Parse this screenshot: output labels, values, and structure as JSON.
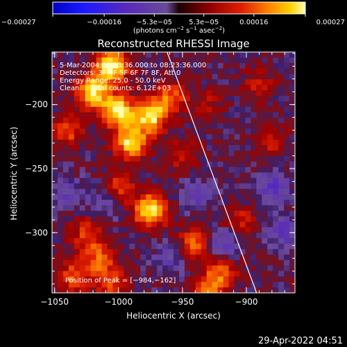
{
  "chart_data": {
    "type": "heatmap",
    "title": "Reconstructed RHESSI Image",
    "xlabel": "Heliocentric X (arcsec)",
    "ylabel": "Heliocentric Y (arcsec)",
    "xlim": [
      -1052,
      -862
    ],
    "ylim": [
      -347,
      -159
    ],
    "x_ticks": [
      {
        "value": -1050,
        "label": "−1050"
      },
      {
        "value": -1000,
        "label": "−1000"
      },
      {
        "value": -950,
        "label": "−950"
      },
      {
        "value": -900,
        "label": "−900"
      }
    ],
    "y_ticks": [
      {
        "value": -200,
        "label": "−200"
      },
      {
        "value": -250,
        "label": "−250"
      },
      {
        "value": -300,
        "label": "−300"
      }
    ],
    "colorbar": {
      "range": [
        -0.00027,
        0.00027
      ],
      "label_main": "(photons cm",
      "label_exp1": "−2",
      "label_mid": " s",
      "label_exp2": "−1",
      "label_end": " asec",
      "label_exp3": "−2",
      "label_close": ")",
      "ticks": [
        {
          "value": -0.00027,
          "label": "−0.00027"
        },
        {
          "value": -0.00016,
          "label": "−0.00016"
        },
        {
          "value": -5.3e-05,
          "label": "−5.3e−05"
        },
        {
          "value": 5.3e-05,
          "label": "5.3e−05"
        },
        {
          "value": 0.00016,
          "label": "0.00016"
        },
        {
          "value": 0.00027,
          "label": "0.00027"
        }
      ]
    },
    "annotations": [
      "5-Mar-2004 08:23:36.000 to 08:23:36.000",
      "Detectors: 3F 4F 5F 6F 7F 8F, Att 0",
      "Energy Range: 25.0 - 50.0 keV",
      "Clean     Total counts: 6.12E+03"
    ],
    "peak_label": "Position of Peak = [−984,−162]",
    "limb_line": {
      "x": [
        -962,
        -892
      ],
      "y": [
        -159,
        -347
      ]
    },
    "sources": [
      {
        "x": -1005,
        "y": -170,
        "intensity": 0.00026
      },
      {
        "x": -1020,
        "y": -190,
        "intensity": 0.00024
      },
      {
        "x": -1000,
        "y": -205,
        "intensity": 0.00025
      },
      {
        "x": -975,
        "y": -210,
        "intensity": 0.00022
      },
      {
        "x": -990,
        "y": -230,
        "intensity": 0.00024
      },
      {
        "x": -960,
        "y": -195,
        "intensity": 0.00016
      },
      {
        "x": -1040,
        "y": -220,
        "intensity": 0.00014
      },
      {
        "x": -975,
        "y": -283,
        "intensity": 0.00026
      },
      {
        "x": -1000,
        "y": -265,
        "intensity": 0.00013
      },
      {
        "x": -1025,
        "y": -300,
        "intensity": 0.00012
      },
      {
        "x": -1015,
        "y": -320,
        "intensity": 0.00014
      },
      {
        "x": -1035,
        "y": -335,
        "intensity": 0.00015
      },
      {
        "x": -1005,
        "y": -340,
        "intensity": 0.00013
      },
      {
        "x": -940,
        "y": -308,
        "intensity": 0.00016
      },
      {
        "x": -920,
        "y": -330,
        "intensity": 0.00015
      },
      {
        "x": -930,
        "y": -345,
        "intensity": 0.00013
      },
      {
        "x": -905,
        "y": -290,
        "intensity": 9e-05
      },
      {
        "x": -950,
        "y": -240,
        "intensity": 0.0001
      },
      {
        "x": -880,
        "y": -230,
        "intensity": 8e-05
      },
      {
        "x": -890,
        "y": -185,
        "intensity": 9e-05
      },
      {
        "x": -930,
        "y": -200,
        "intensity": 7e-05
      }
    ],
    "negative_regions": [
      {
        "x": -920,
        "y": -310,
        "intensity": -0.00012
      },
      {
        "x": -870,
        "y": -300,
        "intensity": -0.0001
      },
      {
        "x": -940,
        "y": -270,
        "intensity": -9e-05
      },
      {
        "x": -880,
        "y": -265,
        "intensity": -0.00011
      },
      {
        "x": -1040,
        "y": -270,
        "intensity": -8e-05
      },
      {
        "x": -1010,
        "y": -275,
        "intensity": -9e-05
      },
      {
        "x": -960,
        "y": -320,
        "intensity": -7e-05
      }
    ]
  },
  "footer": {
    "timestamp": "29-Apr-2022 04:51"
  }
}
